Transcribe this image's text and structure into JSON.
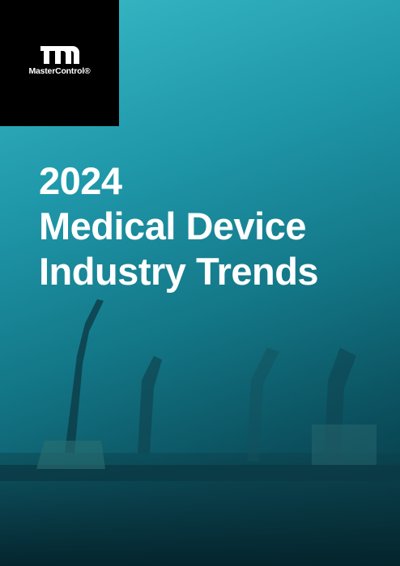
{
  "logo": {
    "name": "MasterControl®"
  },
  "title": {
    "lines": [
      "2024",
      "Medical Device",
      "Industry Trends"
    ]
  }
}
